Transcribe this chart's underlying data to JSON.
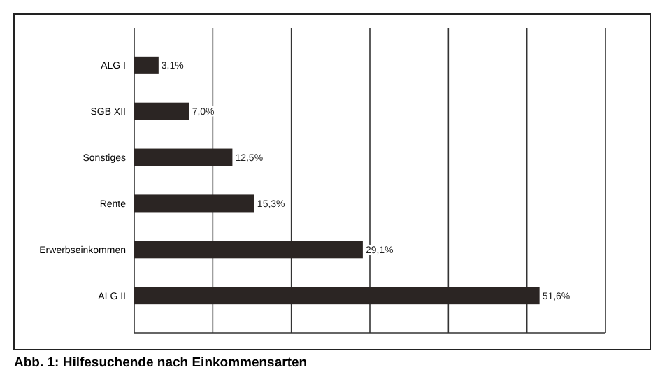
{
  "chart_data": {
    "type": "bar",
    "orientation": "horizontal",
    "annotations": [
      "Abb. 1: Hilfesuchende nach Einkommensarten"
    ],
    "categories": [
      "ALG I",
      "SGB XII",
      "Sonstiges",
      "Rente",
      "Erwerbseinkommen",
      "ALG II"
    ],
    "values": [
      3.1,
      7.0,
      12.5,
      15.3,
      29.1,
      51.6
    ],
    "value_labels": [
      "3,1%",
      "7,0%",
      "12,5%",
      "15,3%",
      "29,1%",
      "51,6%"
    ],
    "color": "#2b2523",
    "xlim": [
      0,
      60
    ],
    "xticks": [
      {
        "value": 0,
        "label": null
      },
      {
        "value": 10,
        "label": null
      },
      {
        "value": 20,
        "label": null
      },
      {
        "value": 30,
        "label": null
      },
      {
        "value": 40,
        "label": null
      },
      {
        "value": 50,
        "label": null
      },
      {
        "value": 60,
        "label": null
      }
    ],
    "grid": "x",
    "tick_labels": "y"
  }
}
